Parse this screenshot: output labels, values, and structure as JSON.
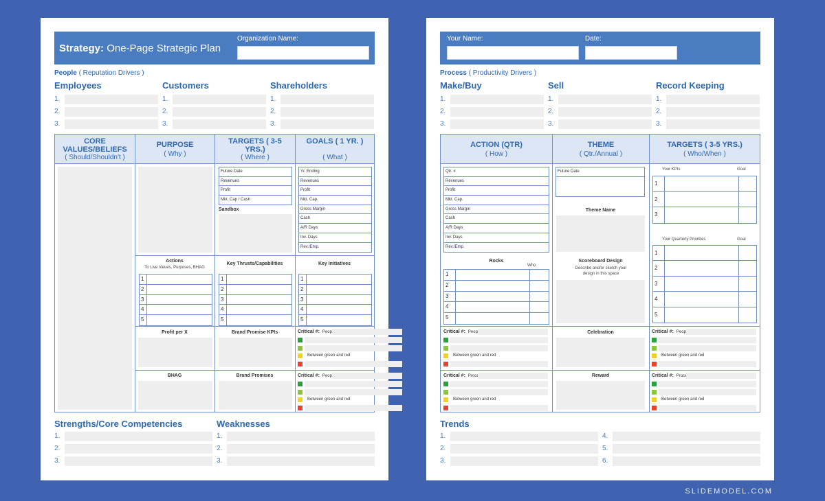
{
  "p1": {
    "title_bold": "Strategy:",
    "title_rest": " One-Page Strategic Plan",
    "org_label": "Organization Name:",
    "section_name": "People",
    "section_sub": "( Reputation Drivers )",
    "cols": [
      "Employees",
      "Customers",
      "Shareholders"
    ],
    "nums": [
      "1.",
      "2.",
      "3."
    ],
    "headers": [
      {
        "t": "CORE VALUES/BELIEFS",
        "s": "( Should/Shouldn't )"
      },
      {
        "t": "PURPOSE",
        "s": "( Why )"
      },
      {
        "t": "TARGETS ( 3-5 YRS.)",
        "s": "( Where )"
      },
      {
        "t": "GOALS ( 1 YR. )",
        "s": "( What )"
      }
    ],
    "targets_rows": [
      "Future Date",
      "Revenues",
      "Profit",
      "Mkt. Cap / Cash"
    ],
    "sandbox": "Sandbox",
    "goals_rows": [
      "Yr. Ending",
      "Revenues",
      "Profit",
      "Mkt. Cap.",
      "Gross Margin",
      "Cash",
      "A/R Days",
      "Inv. Days",
      "Rev./Emp."
    ],
    "actions_title": "Actions",
    "actions_sub": "To Live Values, Purposes, BHAG",
    "kt_title": "Key Thrusts/Capabilities",
    "ki_title": "Key Initiatives",
    "rownums": [
      "1",
      "2",
      "3",
      "4",
      "5"
    ],
    "profit": "Profit per X",
    "bpk": "Brand Promise KPIs",
    "bhag": "BHAG",
    "bp": "Brand Promises",
    "crit1_label": "Critical #:",
    "crit1_sub": "People or B/S",
    "crit2_label": "Critical #:",
    "crit2_sub": "People or B/S",
    "between": "Between green and red",
    "strengths": "Strengths/Core Competencies",
    "weak": "Weaknesses"
  },
  "p2": {
    "name_label": "Your Name:",
    "date_label": "Date:",
    "section_name": "Process",
    "section_sub": "( Productivity Drivers )",
    "cols": [
      "Make/Buy",
      "Sell",
      "Record Keeping"
    ],
    "nums": [
      "1.",
      "2.",
      "3."
    ],
    "headers": [
      {
        "t": "ACTION (QTR)",
        "s": "( How )"
      },
      {
        "t": "THEME",
        "s": "( Qtr./Annual )"
      },
      {
        "t": "TARGETS ( 3-5 YRS.)",
        "s": "( Who/When )"
      }
    ],
    "action_rows": [
      "Qtr. #",
      "Revenues",
      "Profit",
      "Mkt. Cap.",
      "Gross Margin",
      "Cash",
      "A/R Days",
      "Inv. Days",
      "Rev./Emp."
    ],
    "rocks": "Rocks",
    "who": "Who",
    "future": "Future Date",
    "theme_name": "Theme Name",
    "score": "Scoreboard Design",
    "score_sub": "Describe and/or sketch your design in this space",
    "kpis": "Your KPIs",
    "goal": "Goal",
    "qp": "Your Quarterly Priorities",
    "goal2": "Goal",
    "kpi_nums": [
      "1",
      "2",
      "3"
    ],
    "qp_nums": [
      "1",
      "2",
      "3",
      "4",
      "5"
    ],
    "celebration": "Celebration",
    "reward": "Reward",
    "crit_a_label": "Critical #:",
    "crit_a_sub": "People or B/S",
    "crit_b_label": "Critical #:",
    "crit_b_sub": "People or B/S",
    "crit_c_label": "Critical #:",
    "crit_c_sub": "Process or P/L",
    "crit_d_label": "Critical #:",
    "crit_d_sub": "Process or P/L",
    "between": "Between green and red",
    "trends": "Trends",
    "trend_nums": [
      "1.",
      "2.",
      "3.",
      "4.",
      "5.",
      "6."
    ]
  },
  "colors": {
    "green_dark": "#2e9e3e",
    "green_light": "#8cc63f",
    "yellow": "#f2d21c",
    "red": "#e8412c",
    "accent": "#4a7cc2"
  },
  "credit": "SLIDEMODEL.COM"
}
